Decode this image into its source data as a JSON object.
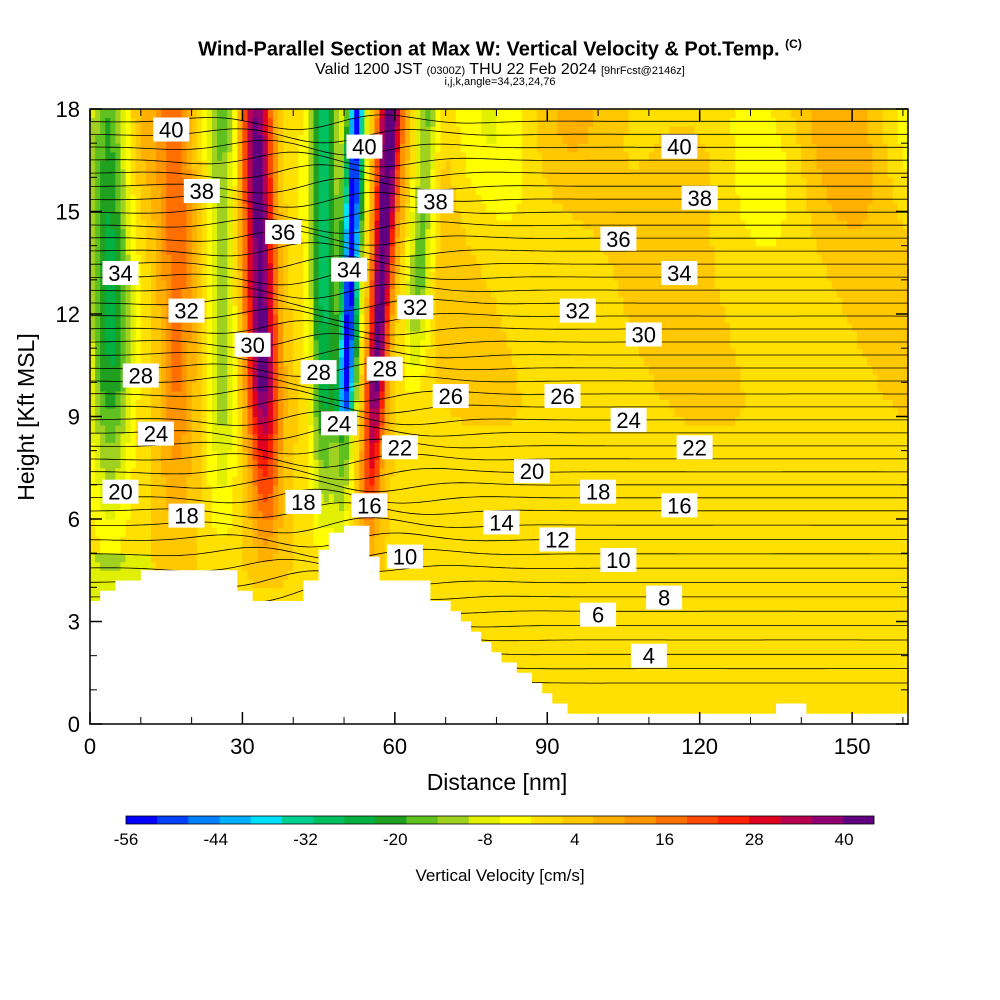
{
  "header": {
    "title": "Wind-Parallel Section at Max W: Vertical Velocity & Pot.Temp.",
    "copyright": "(C)",
    "valid_prefix": "Valid 1200 JST",
    "valid_utc": "(0300Z)",
    "valid_date": "THU 22 Feb 2024",
    "forecast": "[9hrFcst@2146z]",
    "grid_info": "i,j,k,angle=34,23,24,76"
  },
  "chart_data": {
    "type": "heatmap",
    "xlabel": "Distance [nm]",
    "ylabel": "Height [Kft MSL]",
    "xlim": [
      0,
      161
    ],
    "ylim": [
      0,
      18
    ],
    "x_ticks": [
      0,
      30,
      60,
      90,
      120,
      150
    ],
    "y_ticks": [
      0,
      3,
      6,
      9,
      12,
      15,
      18
    ],
    "colorbar": {
      "label": "Vertical Velocity [cm/s]",
      "tick_labels": [
        -56,
        -44,
        -32,
        -20,
        -8,
        4,
        16,
        28,
        40
      ],
      "range": [
        -56,
        44
      ],
      "colors": [
        "#0000ff",
        "#0040ff",
        "#0080ff",
        "#00b0ff",
        "#00e0ff",
        "#00d090",
        "#00c060",
        "#00b040",
        "#20a020",
        "#60c020",
        "#a0d020",
        "#e0f000",
        "#ffff00",
        "#ffe000",
        "#ffc800",
        "#ffb000",
        "#ff9600",
        "#ff7000",
        "#ff4800",
        "#ff2000",
        "#e00020",
        "#b80050",
        "#900070",
        "#600080"
      ]
    },
    "terrain_profile_kft": [
      [
        0,
        3.6
      ],
      [
        2,
        3.6
      ],
      [
        2,
        3.9
      ],
      [
        5,
        3.9
      ],
      [
        5,
        4.2
      ],
      [
        10,
        4.2
      ],
      [
        10,
        4.5
      ],
      [
        29,
        4.5
      ],
      [
        29,
        3.9
      ],
      [
        32,
        3.9
      ],
      [
        32,
        3.6
      ],
      [
        42,
        3.6
      ],
      [
        42,
        4.2
      ],
      [
        45,
        4.2
      ],
      [
        45,
        5.1
      ],
      [
        47,
        5.1
      ],
      [
        47,
        5.6
      ],
      [
        50,
        5.6
      ],
      [
        50,
        5.8
      ],
      [
        55,
        5.8
      ],
      [
        55,
        4.9
      ],
      [
        57,
        4.9
      ],
      [
        57,
        4.2
      ],
      [
        67,
        4.2
      ],
      [
        67,
        3.6
      ],
      [
        71,
        3.6
      ],
      [
        71,
        3.3
      ],
      [
        73,
        3.3
      ],
      [
        73,
        3.0
      ],
      [
        75,
        3.0
      ],
      [
        75,
        2.7
      ],
      [
        77,
        2.7
      ],
      [
        77,
        2.4
      ],
      [
        79,
        2.4
      ],
      [
        79,
        2.1
      ],
      [
        81,
        2.1
      ],
      [
        81,
        1.8
      ],
      [
        84,
        1.8
      ],
      [
        84,
        1.5
      ],
      [
        87,
        1.5
      ],
      [
        87,
        1.2
      ],
      [
        89,
        1.2
      ],
      [
        89,
        0.9
      ],
      [
        91,
        0.9
      ],
      [
        91,
        0.6
      ],
      [
        94,
        0.6
      ],
      [
        94,
        0.3
      ],
      [
        135,
        0.3
      ],
      [
        135,
        0.6
      ],
      [
        141,
        0.6
      ],
      [
        141,
        0.3
      ],
      [
        161,
        0.3
      ]
    ],
    "theta_labels": [
      {
        "text": "40",
        "x": 16,
        "y": 17.4
      },
      {
        "text": "40",
        "x": 54,
        "y": 16.9
      },
      {
        "text": "40",
        "x": 116,
        "y": 16.9
      },
      {
        "text": "38",
        "x": 22,
        "y": 15.6
      },
      {
        "text": "38",
        "x": 68,
        "y": 15.3
      },
      {
        "text": "38",
        "x": 120,
        "y": 15.4
      },
      {
        "text": "36",
        "x": 38,
        "y": 14.4
      },
      {
        "text": "36",
        "x": 104,
        "y": 14.2
      },
      {
        "text": "34",
        "x": 6,
        "y": 13.2
      },
      {
        "text": "34",
        "x": 51,
        "y": 13.3
      },
      {
        "text": "34",
        "x": 116,
        "y": 13.2
      },
      {
        "text": "32",
        "x": 19,
        "y": 12.1
      },
      {
        "text": "32",
        "x": 64,
        "y": 12.2
      },
      {
        "text": "32",
        "x": 96,
        "y": 12.1
      },
      {
        "text": "30",
        "x": 32,
        "y": 11.1
      },
      {
        "text": "30",
        "x": 109,
        "y": 11.4
      },
      {
        "text": "28",
        "x": 10,
        "y": 10.2
      },
      {
        "text": "28",
        "x": 45,
        "y": 10.3
      },
      {
        "text": "28",
        "x": 58,
        "y": 10.4
      },
      {
        "text": "26",
        "x": 71,
        "y": 9.6
      },
      {
        "text": "26",
        "x": 93,
        "y": 9.6
      },
      {
        "text": "24",
        "x": 13,
        "y": 8.5
      },
      {
        "text": "24",
        "x": 49,
        "y": 8.8
      },
      {
        "text": "24",
        "x": 106,
        "y": 8.9
      },
      {
        "text": "22",
        "x": 61,
        "y": 8.1
      },
      {
        "text": "22",
        "x": 119,
        "y": 8.1
      },
      {
        "text": "20",
        "x": 6,
        "y": 6.8
      },
      {
        "text": "20",
        "x": 87,
        "y": 7.4
      },
      {
        "text": "18",
        "x": 19,
        "y": 6.1
      },
      {
        "text": "18",
        "x": 42,
        "y": 6.5
      },
      {
        "text": "18",
        "x": 100,
        "y": 6.8
      },
      {
        "text": "16",
        "x": 55,
        "y": 6.4
      },
      {
        "text": "16",
        "x": 116,
        "y": 6.4
      },
      {
        "text": "14",
        "x": 81,
        "y": 5.9
      },
      {
        "text": "12",
        "x": 92,
        "y": 5.4
      },
      {
        "text": "10",
        "x": 62,
        "y": 4.9
      },
      {
        "text": "10",
        "x": 104,
        "y": 4.8
      },
      {
        "text": "8",
        "x": 113,
        "y": 3.7
      },
      {
        "text": "6",
        "x": 100,
        "y": 3.2
      },
      {
        "text": "4",
        "x": 110,
        "y": 2.0
      }
    ]
  }
}
